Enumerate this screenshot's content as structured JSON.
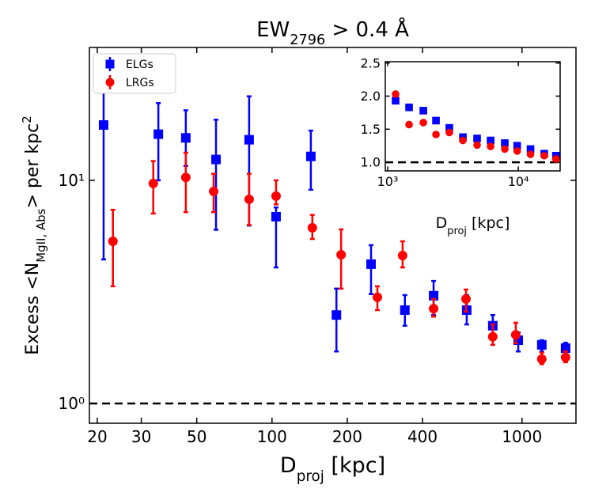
{
  "chart_data": [
    {
      "type": "scatter",
      "title_parts": [
        "EW",
        "2796",
        " > 0.4 Å"
      ],
      "title_styles": [
        "normal",
        "sub",
        "normal"
      ],
      "xlabel_parts": [
        "D",
        "proj",
        " [kpc]"
      ],
      "xlabel_styles": [
        "normal",
        "sub",
        "normal"
      ],
      "ylabel_parts": [
        "Excess <N",
        "MgII, Abs",
        "> per kpc",
        "2"
      ],
      "ylabel_styles": [
        "normal",
        "sub",
        "normal",
        "sup"
      ],
      "xscale": "log",
      "yscale": "log",
      "xlim": [
        18.6,
        1644
      ],
      "ylim": [
        0.815,
        39.4
      ],
      "xticks": [
        20,
        30,
        50,
        100,
        200,
        400,
        1000
      ],
      "yticks": [
        {
          "value": 1,
          "label": "10⁰"
        },
        {
          "value": 10,
          "label": "10¹"
        }
      ],
      "hline": 1,
      "legend": "upper left",
      "series": [
        {
          "name": "ELGs",
          "color": "#0000ff",
          "marker": "square",
          "x": [
            21.2,
            35.1,
            45.2,
            59.7,
            81.0,
            103.8,
            143,
            181,
            249,
            340,
            443,
            601,
            764,
            966,
            1200,
            1494
          ],
          "values": [
            17.7,
            16.1,
            15.5,
            12.4,
            15.2,
            6.87,
            12.8,
            2.49,
            4.21,
            2.62,
            3.04,
            2.62,
            2.23,
            1.92,
            1.83,
            1.77
          ],
          "lower": [
            4.42,
            10.0,
            11.6,
            6.0,
            6.27,
            4.07,
            9.07,
            1.71,
            3.09,
            2.23,
            2.49,
            2.26,
            1.99,
            1.71,
            1.71,
            1.66
          ],
          "upper": [
            30.9,
            22.2,
            20.6,
            18.7,
            23.8,
            7.56,
            16.7,
            3.27,
            5.12,
            3.06,
            3.54,
            3.06,
            2.49,
            2.08,
            1.92,
            1.87
          ]
        },
        {
          "name": "LRGs",
          "color": "#ff0000",
          "marker": "circle",
          "x": [
            23.1,
            33.5,
            45.2,
            58.4,
            81.0,
            103.8,
            145,
            189,
            264,
            333,
            443,
            597,
            764,
            944,
            1200,
            1494
          ],
          "values": [
            5.33,
            9.68,
            10.3,
            8.92,
            8.22,
            8.5,
            6.13,
            4.64,
            2.99,
            4.6,
            2.66,
            2.94,
            1.99,
            2.03,
            1.58,
            1.61
          ],
          "lower": [
            3.35,
            7.1,
            7.2,
            7.2,
            6.3,
            7.8,
            5.46,
            3.27,
            2.62,
            4.07,
            2.45,
            2.58,
            1.83,
            1.86,
            1.5,
            1.53
          ],
          "upper": [
            7.38,
            12.2,
            13.3,
            10.7,
            10.7,
            10.0,
            7.0,
            6.03,
            3.35,
            5.33,
            2.94,
            3.24,
            2.26,
            2.3,
            1.69,
            1.71
          ]
        }
      ]
    },
    {
      "type": "scatter",
      "xlabel_parts": [
        "D",
        "proj",
        " [kpc]"
      ],
      "xlabel_styles": [
        "normal",
        "sub",
        "normal"
      ],
      "xscale": "log",
      "yscale": "linear",
      "xlim": [
        959,
        20900
      ],
      "ylim": [
        0.87,
        2.52
      ],
      "xticks": [
        {
          "value": 1000,
          "label": "10³"
        },
        {
          "value": 10000,
          "label": "10⁴"
        }
      ],
      "yticks": [
        {
          "value": 1.0,
          "label": "1.0"
        },
        {
          "value": 1.5,
          "label": "1.5"
        },
        {
          "value": 2.0,
          "label": "2.0"
        },
        {
          "value": 2.5,
          "label": "2.5"
        }
      ],
      "hline": 1,
      "series": [
        {
          "color": "#0000ff",
          "marker": "square",
          "x": [
            1150,
            1458,
            1875,
            2343,
            2965,
            3765,
            4835,
            6137,
            7880,
            9800,
            12400,
            15800,
            19400
          ],
          "values": [
            1.93,
            1.83,
            1.78,
            1.63,
            1.52,
            1.38,
            1.36,
            1.33,
            1.29,
            1.25,
            1.2,
            1.13,
            1.1
          ]
        },
        {
          "color": "#ff0000",
          "marker": "circle",
          "x": [
            1150,
            1458,
            1875,
            2343,
            2965,
            3765,
            4835,
            6137,
            7880,
            9800,
            12400,
            15800,
            19400
          ],
          "values": [
            2.03,
            1.57,
            1.6,
            1.42,
            1.45,
            1.33,
            1.26,
            1.24,
            1.2,
            1.17,
            1.12,
            1.1,
            1.05
          ]
        }
      ]
    }
  ]
}
